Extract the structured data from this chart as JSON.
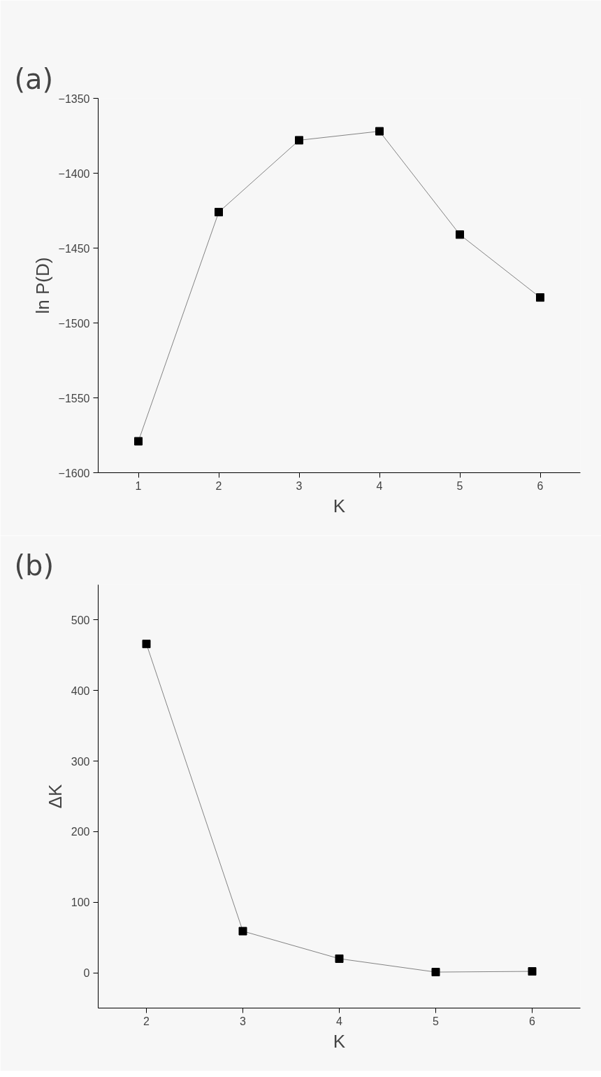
{
  "chart_data": [
    {
      "type": "line",
      "title": "(a)",
      "xlabel": "K",
      "ylabel": "ln P(D)",
      "x": [
        1,
        2,
        3,
        4,
        5,
        6
      ],
      "values": [
        -1579,
        -1426,
        -1378,
        -1372,
        -1441,
        -1483
      ],
      "color": "#000000",
      "marker": "square",
      "xlim": [
        0.5,
        6.5
      ],
      "ylim": [
        -1600,
        -1350
      ],
      "xticks": [
        1,
        2,
        3,
        4,
        5,
        6
      ],
      "yticks": [
        -1600,
        -1550,
        -1500,
        -1450,
        -1400,
        -1350
      ]
    },
    {
      "type": "line",
      "title": "(b)",
      "xlabel": "K",
      "ylabel": "ΔK",
      "x": [
        2,
        3,
        4,
        5,
        6
      ],
      "values": [
        466,
        59,
        20,
        1,
        2
      ],
      "color": "#000000",
      "marker": "square",
      "xlim": [
        1.5,
        6.5
      ],
      "ylim": [
        -50,
        550
      ],
      "xticks": [
        2,
        3,
        4,
        5,
        6
      ],
      "yticks": [
        0,
        100,
        200,
        300,
        400,
        500
      ]
    }
  ]
}
